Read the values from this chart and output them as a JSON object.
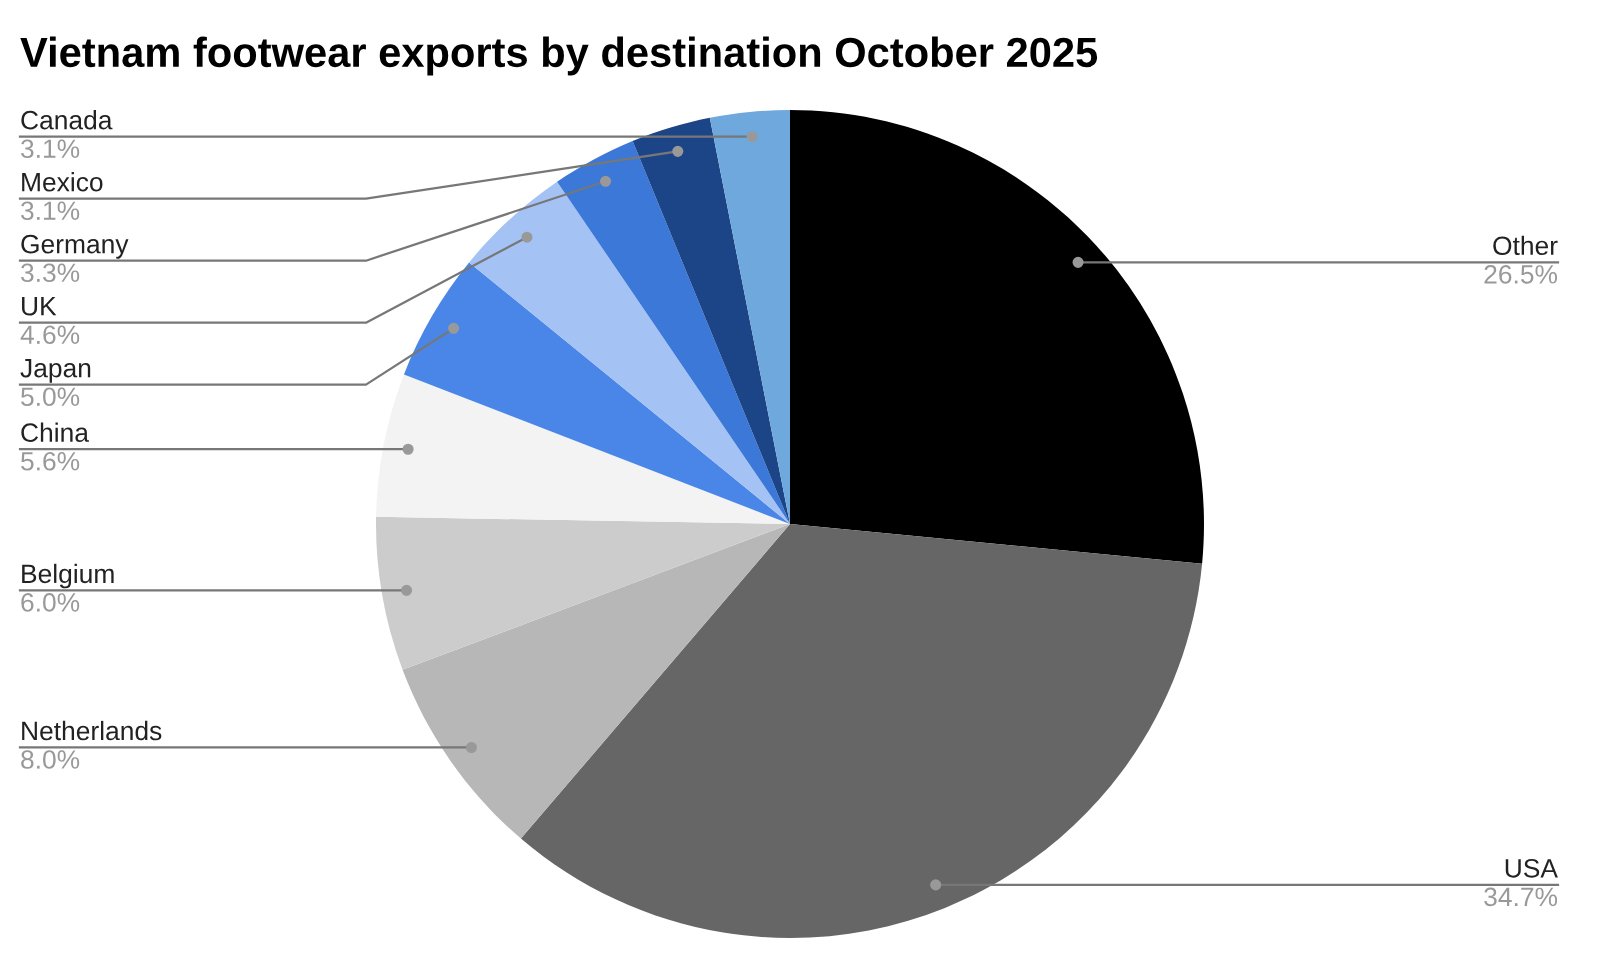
{
  "chart_data": {
    "type": "pie",
    "title": "Vietnam footwear exports by destination October 2025",
    "categories": [
      "Other",
      "USA",
      "Netherlands",
      "Belgium",
      "China",
      "Japan",
      "UK",
      "Germany",
      "Mexico",
      "Canada"
    ],
    "values": [
      26.5,
      34.7,
      8.0,
      6.0,
      5.6,
      5.0,
      4.6,
      3.3,
      3.1,
      3.1
    ],
    "value_labels": [
      "26.5%",
      "34.7%",
      "8.0%",
      "6.0%",
      "5.6%",
      "5.0%",
      "4.6%",
      "3.3%",
      "3.1%",
      "3.1%"
    ],
    "colors": [
      "#000000",
      "#666666",
      "#b7b7b7",
      "#cccccc",
      "#f3f3f3",
      "#4a86e8",
      "#a4c2f4",
      "#3c78d8",
      "#1c4587",
      "#6fa8dc"
    ],
    "legend": false
  }
}
